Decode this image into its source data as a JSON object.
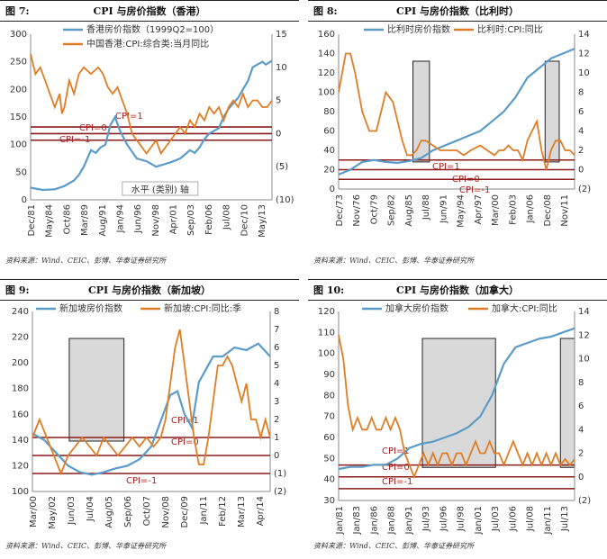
{
  "panels": [
    {
      "fig_no": "图 7:",
      "title": "CPI 与房价指数（香港）",
      "source": "资料来源：Wind、CEIC、彭博、华泰证券研究所",
      "chart_data": {
        "type": "line",
        "series": [
          {
            "name": "香港房价指数（1999Q2=100）",
            "axis": "left",
            "color": "#5b9bc8",
            "x": [
              0,
              5,
              10,
              14,
              18,
              20,
              22,
              25,
              27,
              29,
              31,
              33,
              35,
              37,
              40,
              44,
              48,
              52,
              58,
              62,
              66,
              68,
              70,
              72,
              74,
              76,
              78,
              80,
              82,
              84,
              86,
              88,
              90,
              92,
              94,
              96,
              97.5,
              100
            ],
            "values": [
              22,
              18,
              19,
              25,
              35,
              45,
              60,
              90,
              85,
              95,
              100,
              135,
              150,
              125,
              100,
              75,
              70,
              60,
              68,
              75,
              90,
              85,
              95,
              110,
              120,
              125,
              130,
              150,
              165,
              175,
              185,
              200,
              215,
              240,
              245,
              250,
              245,
              252
            ]
          },
          {
            "name": "中国香港:CPI:综合类:当月同比",
            "axis": "right",
            "color": "#e07d24",
            "x": [
              0,
              2,
              4,
              6,
              8,
              10,
              12,
              13,
              14,
              16,
              18,
              20,
              22,
              25,
              28,
              30,
              32,
              34,
              36,
              38,
              40,
              42,
              44,
              46,
              48,
              50,
              52,
              54,
              56,
              58,
              60,
              62,
              64,
              66,
              68,
              70,
              72,
              74,
              76,
              78,
              80,
              82,
              84,
              86,
              88,
              90,
              92,
              94,
              96,
              98,
              100
            ],
            "values": [
              12,
              9,
              10,
              8,
              6,
              4,
              6,
              3,
              4,
              8,
              6,
              9,
              10,
              9,
              10,
              9,
              7,
              6,
              7,
              5,
              3,
              0,
              -1,
              -2,
              -3,
              -2,
              -1,
              -3,
              -2,
              -1,
              0,
              1,
              0,
              2,
              1,
              3,
              2,
              4,
              3,
              4,
              2,
              4,
              5,
              4,
              6,
              4,
              5,
              5,
              4,
              4,
              5
            ]
          }
        ],
        "x_ticks": [
          "Dec/81",
          "May/84",
          "Oct/86",
          "Mar/89",
          "Aug/91",
          "Jan/94",
          "Jun/96",
          "Nov/98",
          "Apr/01",
          "Sep/03",
          "Feb/06",
          "Jul/08",
          "Dec/10",
          "May/13"
        ],
        "y_left": {
          "min": 0,
          "max": 300,
          "ticks": [
            "0",
            "50",
            "100",
            "150",
            "200",
            "250",
            "300"
          ]
        },
        "y_right": {
          "min": -10,
          "max": 15,
          "ticks": [
            "(10)",
            "(5)",
            "0",
            "5",
            "10",
            "15"
          ]
        },
        "ref_lines": [
          {
            "label": "CPI=1",
            "value": 1
          },
          {
            "label": "CPI=0",
            "value": 0
          },
          {
            "label": "CPI=-1",
            "value": -1
          }
        ],
        "shaded": [],
        "axis_overlay": "水平 (类别) 轴"
      }
    },
    {
      "fig_no": "图 8:",
      "title": "CPI 与房价指数（比利时）",
      "source": "资料来源：Wind、CEIC、彭博、华泰证券研究所",
      "chart_data": {
        "type": "line",
        "series": [
          {
            "name": "比利时房价指数",
            "axis": "left",
            "color": "#5b9bc8",
            "x": [
              0,
              5,
              10,
              15,
              20,
              25,
              30,
              35,
              40,
              45,
              50,
              55,
              60,
              65,
              70,
              75,
              80,
              85,
              90,
              95,
              100
            ],
            "values": [
              15,
              20,
              28,
              30,
              28,
              27,
              29,
              32,
              40,
              45,
              50,
              55,
              60,
              70,
              80,
              95,
              115,
              125,
              135,
              140,
              145
            ]
          },
          {
            "name": "比利时:CPI:同比",
            "axis": "right",
            "color": "#e07d24",
            "x": [
              0,
              3,
              5,
              7,
              10,
              13,
              16,
              18,
              20,
              23,
              25,
              27,
              29,
              31,
              33,
              35,
              37,
              40,
              43,
              46,
              50,
              53,
              56,
              60,
              63,
              66,
              68,
              70,
              72,
              74,
              76,
              78,
              80,
              82,
              84,
              86,
              88,
              90,
              92,
              94,
              96,
              98,
              100
            ],
            "values": [
              8,
              12,
              12,
              10,
              6,
              4,
              4,
              6,
              8,
              7,
              5,
              3,
              1.5,
              1.5,
              2,
              3,
              3,
              2.5,
              2,
              2,
              2,
              1.5,
              2,
              2.5,
              2,
              1.5,
              2,
              2,
              2.5,
              2,
              2,
              1,
              3,
              4,
              5,
              2,
              0,
              2,
              3,
              3,
              2,
              2,
              1.5
            ]
          }
        ],
        "x_ticks": [
          "Dec/73",
          "Nov/76",
          "Oct/79",
          "Sep/82",
          "Aug/85",
          "Jul/88",
          "Jun/91",
          "May/94",
          "Apr/97",
          "Mar/00",
          "Feb/03",
          "Jan/06",
          "Dec/08",
          "Nov/11"
        ],
        "y_left": {
          "min": 0,
          "max": 160,
          "ticks": [
            "0",
            "20",
            "40",
            "60",
            "80",
            "100",
            "120",
            "140",
            "160"
          ]
        },
        "y_right": {
          "min": -2,
          "max": 14,
          "ticks": [
            "(2)",
            "0",
            "2",
            "4",
            "6",
            "8",
            "10",
            "12",
            "14"
          ]
        },
        "ref_lines": [
          {
            "label": "CPI=1",
            "value": 1
          },
          {
            "label": "CPI=0",
            "value": 0
          },
          {
            "label": "CPI=-1",
            "value": -1
          }
        ],
        "shaded": [
          [
            31.5,
            38.5
          ],
          [
            87.5,
            93.5
          ]
        ]
      }
    },
    {
      "fig_no": "图 9:",
      "title": "CPI 与房价指数（新加坡）",
      "source": "资料来源：Wind、CEIC、彭博、华泰证券研究所",
      "chart_data": {
        "type": "line",
        "series": [
          {
            "name": "新加坡房价指数",
            "axis": "left",
            "color": "#5b9bc8",
            "x": [
              0,
              5,
              10,
              15,
              20,
              25,
              30,
              35,
              40,
              45,
              50,
              55,
              58,
              61,
              64,
              67,
              70,
              73,
              76,
              80,
              85,
              90,
              95,
              100
            ],
            "values": [
              145,
              140,
              130,
              120,
              115,
              113,
              115,
              118,
              120,
              125,
              135,
              160,
              175,
              178,
              160,
              150,
              185,
              195,
              205,
              205,
              212,
              210,
              215,
              205
            ]
          },
          {
            "name": "新加坡:CPI:同比:季",
            "axis": "right",
            "color": "#e07d24",
            "x": [
              0,
              3,
              6,
              9,
              12,
              15,
              18,
              21,
              24,
              27,
              30,
              33,
              36,
              39,
              42,
              45,
              48,
              51,
              54,
              56,
              58,
              60,
              62,
              64,
              66,
              68,
              70,
              72,
              74,
              76,
              78,
              80,
              82,
              84,
              86,
              88,
              90,
              92,
              94,
              96,
              98,
              100
            ],
            "values": [
              1,
              2,
              1,
              0,
              -1,
              0,
              0.5,
              1,
              0.5,
              0,
              1,
              0.5,
              0,
              0.5,
              1,
              0.5,
              1,
              0.5,
              1,
              2,
              4,
              6,
              7,
              5,
              3,
              1,
              -0.5,
              -0.5,
              1,
              3,
              5,
              5,
              5.5,
              5,
              4,
              3,
              4,
              2,
              2,
              1,
              2,
              1
            ]
          }
        ],
        "x_ticks": [
          "Mar/00",
          "May/02",
          "Jun/03",
          "Jul/04",
          "Aug/05",
          "Sep/06",
          "Oct/07",
          "Nov/08",
          "Dec/09",
          "Jan/11",
          "Feb/12",
          "Mar/13",
          "Apr/14"
        ],
        "y_left": {
          "min": 100,
          "max": 240,
          "ticks": [
            "100",
            "120",
            "140",
            "160",
            "180",
            "200",
            "220",
            "240"
          ]
        },
        "y_right": {
          "min": -2,
          "max": 8,
          "ticks": [
            "(2)",
            "(1)",
            "0",
            "1",
            "2",
            "3",
            "4",
            "5",
            "6",
            "7",
            "8"
          ]
        },
        "ref_lines": [
          {
            "label": "CPI=1",
            "value": 1
          },
          {
            "label": "CPI=0",
            "value": 0
          },
          {
            "label": "CPI=-1",
            "value": -1
          }
        ],
        "shaded": [
          [
            15.5,
            38.5
          ]
        ]
      }
    },
    {
      "fig_no": "图 10:",
      "title": "CPI 与房价指数（加拿大）",
      "source": "资料来源：Wind、CEIC、彭博、华泰证券研究所",
      "chart_data": {
        "type": "line",
        "series": [
          {
            "name": "加拿大房价指数",
            "axis": "left",
            "color": "#5b9bc8",
            "x": [
              0,
              5,
              10,
              15,
              20,
              25,
              30,
              35,
              40,
              45,
              50,
              55,
              60,
              65,
              70,
              75,
              80,
              85,
              90,
              95,
              100
            ],
            "values": [
              45,
              46,
              46,
              47,
              47,
              50,
              55,
              57,
              58,
              60,
              62,
              65,
              70,
              80,
              95,
              103,
              105,
              107,
              108,
              110,
              112
            ]
          },
          {
            "name": "加拿大:CPI:同比",
            "axis": "right",
            "color": "#e07d24",
            "x": [
              0,
              2,
              4,
              6,
              8,
              10,
              12,
              14,
              16,
              18,
              20,
              22,
              24,
              26,
              28,
              30,
              32,
              34,
              36,
              38,
              40,
              42,
              44,
              46,
              48,
              50,
              52,
              54,
              56,
              58,
              60,
              62,
              64,
              66,
              68,
              70,
              72,
              74,
              76,
              78,
              80,
              82,
              84,
              86,
              88,
              90,
              92,
              94,
              96,
              98,
              100
            ],
            "values": [
              12,
              10,
              6,
              4,
              5,
              4,
              4,
              5,
              4,
              4,
              5,
              4,
              5,
              4,
              2,
              1,
              0,
              1,
              2,
              1,
              2,
              1,
              2,
              2,
              1,
              2,
              2,
              1,
              2,
              3,
              2,
              2,
              3,
              2,
              2,
              1,
              2,
              3,
              2,
              1,
              2,
              1,
              2,
              1,
              2,
              1,
              2,
              1,
              1.5,
              1,
              1.5
            ]
          }
        ],
        "x_ticks": [
          "Jan/81",
          "Jan/83",
          "Jan/86",
          "Jan/88",
          "Jan/91",
          "Jul/93",
          "Jul/96",
          "Jul/98",
          "Jan/01",
          "Jul/03",
          "Jul/06",
          "Jul/08",
          "Jan/11",
          "Jul/13"
        ],
        "y_left": {
          "min": 30,
          "max": 120,
          "ticks": [
            "30",
            "40",
            "50",
            "60",
            "70",
            "80",
            "90",
            "100",
            "110",
            "120"
          ]
        },
        "y_right": {
          "min": -2,
          "max": 14,
          "ticks": [
            "(2)",
            "0",
            "2",
            "4",
            "6",
            "8",
            "10",
            "12",
            "14"
          ]
        },
        "ref_lines": [
          {
            "label": "CPI=1",
            "value": 1
          },
          {
            "label": "CPI=0",
            "value": 0
          },
          {
            "label": "CPI=-1",
            "value": -1
          }
        ],
        "shaded": [
          [
            35.5,
            66.5
          ],
          [
            94,
            100
          ]
        ]
      }
    }
  ],
  "colors": {
    "house": "#5b9bc8",
    "cpi": "#e07d24",
    "ref": "#8b1a1a",
    "shade": "#d9d9d9"
  }
}
